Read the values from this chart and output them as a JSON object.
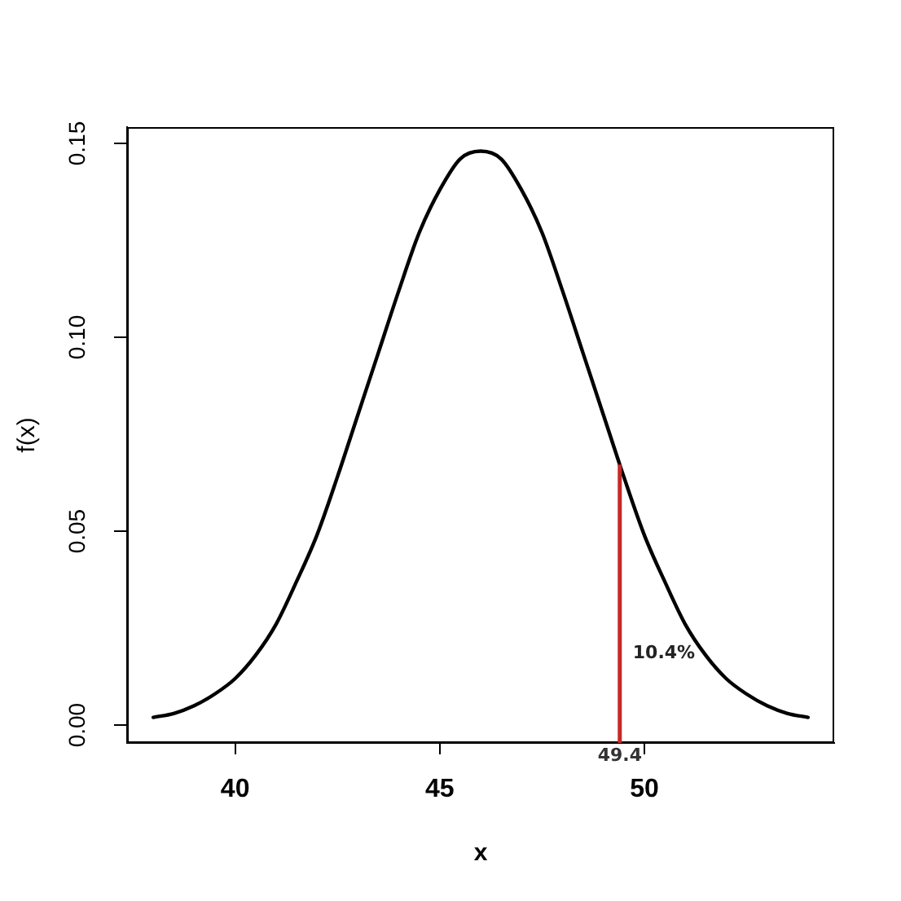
{
  "chart_data": {
    "type": "line",
    "xlabel": "x",
    "ylabel": "f(x)",
    "x": [
      38,
      38.5,
      39,
      39.5,
      40,
      40.5,
      41,
      41.5,
      42,
      42.5,
      43,
      43.5,
      44,
      44.5,
      45,
      45.5,
      46,
      46.5,
      47,
      47.5,
      48,
      48.5,
      49,
      49.5,
      50,
      50.5,
      51,
      51.5,
      52,
      52.5,
      53,
      53.5,
      54
    ],
    "series": [
      {
        "color": "#000000",
        "values": [
          0.002,
          0.003,
          0.005,
          0.008,
          0.012,
          0.018,
          0.026,
          0.037,
          0.049,
          0.064,
          0.08,
          0.096,
          0.112,
          0.127,
          0.138,
          0.146,
          0.148,
          0.146,
          0.138,
          0.127,
          0.112,
          0.096,
          0.08,
          0.064,
          0.049,
          0.037,
          0.026,
          0.018,
          0.012,
          0.008,
          0.005,
          0.003,
          0.002
        ]
      }
    ],
    "xlim": [
      37.36,
      54.64
    ],
    "ylim": [
      -0.0046,
      0.1542
    ],
    "xticks": [
      40,
      45,
      50
    ],
    "yticks": [
      {
        "value": 0,
        "label": "0.00"
      },
      0.05,
      {
        "value": 0.1,
        "label": "0.10"
      },
      0.15
    ],
    "ref_lines": [
      {
        "axis": "x",
        "value": 49.4,
        "label": "49.4",
        "color": "#c62828"
      }
    ],
    "annotations": [
      "10.4%"
    ]
  }
}
